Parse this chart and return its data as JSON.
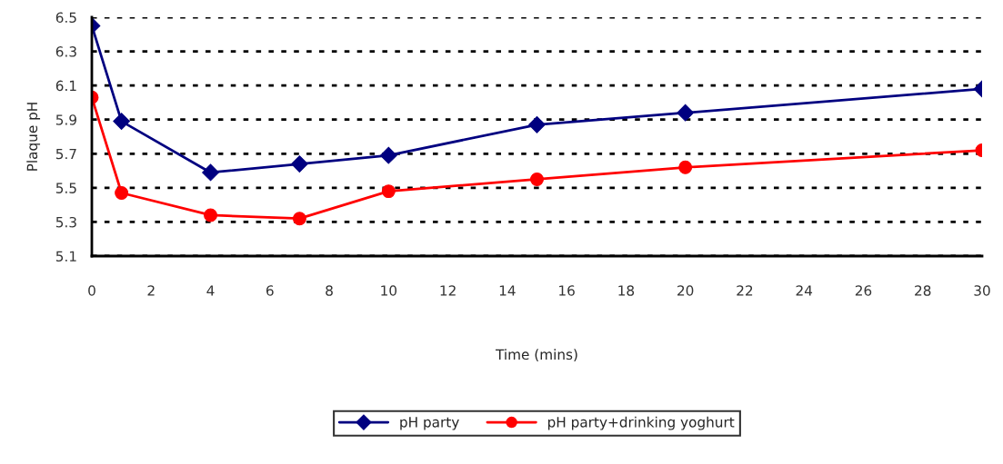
{
  "chart_data": {
    "type": "line",
    "xlabel": "Time (mins)",
    "ylabel": "Plaque pH",
    "x": [
      0,
      1,
      4,
      7,
      10,
      15,
      20,
      30
    ],
    "series": [
      {
        "name": "pH party",
        "color": "#000080",
        "marker": "diamond",
        "values": [
          6.45,
          5.89,
          5.59,
          5.64,
          5.69,
          5.87,
          5.94,
          6.08
        ]
      },
      {
        "name": "pH party+drinking yoghurt",
        "color": "#ff0000",
        "marker": "circle",
        "values": [
          6.03,
          5.47,
          5.34,
          5.32,
          5.48,
          5.55,
          5.62,
          5.72
        ]
      }
    ],
    "xlim": [
      0,
      30
    ],
    "xticks": [
      0,
      2,
      4,
      6,
      8,
      10,
      12,
      14,
      16,
      18,
      20,
      22,
      24,
      26,
      28,
      30
    ],
    "ylim": [
      5.1,
      6.5
    ],
    "yticks": [
      5.1,
      5.3,
      5.5,
      5.7,
      5.9,
      6.1,
      6.3,
      6.5
    ],
    "grid": "y",
    "legend": "bottom",
    "line_style": "solid"
  }
}
